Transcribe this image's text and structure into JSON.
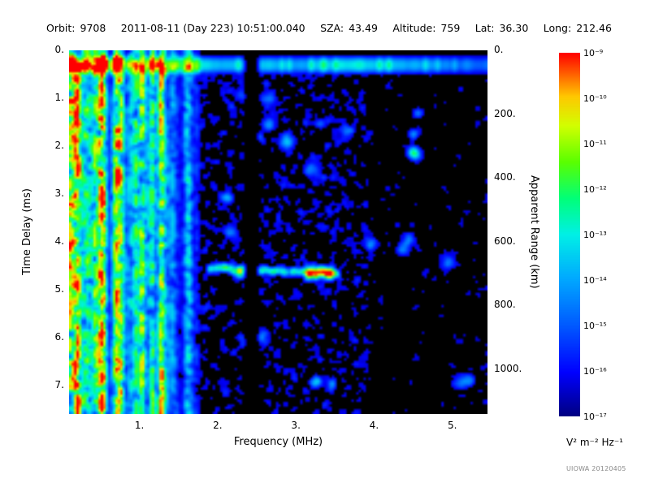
{
  "header": {
    "items": [
      {
        "label": "Orbit:",
        "value": "9708"
      },
      {
        "label": "",
        "value": "2011-08-11 (Day 223) 10:51:00.040"
      },
      {
        "label": "SZA:",
        "value": "43.49"
      },
      {
        "label": "Altitude:",
        "value": "759"
      },
      {
        "label": "Lat:",
        "value": "36.30"
      },
      {
        "label": "Long:",
        "value": "212.46"
      }
    ]
  },
  "chart_data": {
    "type": "heatmap",
    "description": "Active ionospheric sounding ionogram: echo spectral density versus sounding frequency and time delay",
    "xlabel": "Frequency (MHz)",
    "ylabel": "Time Delay (ms)",
    "y2label": "Apparent Range (km)",
    "xlim": [
      0.1,
      5.45
    ],
    "ylim": [
      0,
      7.6
    ],
    "y2_km_per_ms": 150,
    "xticks": [
      1,
      2,
      3,
      4,
      5
    ],
    "xtick_labels": [
      "1.",
      "2.",
      "3.",
      "4.",
      "5."
    ],
    "yticks": [
      0,
      1,
      2,
      3,
      4,
      5,
      6,
      7
    ],
    "ytick_labels": [
      "0.",
      "1.",
      "2.",
      "3.",
      "4.",
      "5.",
      "6.",
      "7."
    ],
    "y2ticks": [
      0,
      200,
      400,
      600,
      800,
      1000
    ],
    "y2tick_labels": [
      "0.",
      "200.",
      "400.",
      "600.",
      "800.",
      "1000."
    ],
    "colorbar": {
      "unit": "V² m⁻² Hz⁻¹",
      "max": "1e-9",
      "min": "1e-17",
      "tick_labels": [
        "10⁻⁹",
        "10⁻¹⁰",
        "10⁻¹¹",
        "10⁻¹²",
        "10⁻¹³",
        "10⁻¹⁴",
        "10⁻¹⁵",
        "10⁻¹⁶",
        "10⁻¹⁷"
      ],
      "colormap": [
        [
          0.0,
          "#000082"
        ],
        [
          0.12,
          "#0000ff"
        ],
        [
          0.25,
          "#005aff"
        ],
        [
          0.38,
          "#00aaff"
        ],
        [
          0.5,
          "#00f0e6"
        ],
        [
          0.6,
          "#00ff78"
        ],
        [
          0.7,
          "#5aff00"
        ],
        [
          0.8,
          "#d2ff00"
        ],
        [
          0.88,
          "#ffc800"
        ],
        [
          0.94,
          "#ff6400"
        ],
        [
          1.0,
          "#ff0000"
        ]
      ]
    },
    "features": [
      {
        "name": "local-plasma-noise-band",
        "freq_mhz": [
          0.1,
          5.45
        ],
        "delay_ms": [
          0.12,
          0.44
        ],
        "level": "strong"
      },
      {
        "name": "low-frequency-striations",
        "freq_mhz": [
          0.1,
          1.78
        ],
        "delay_ms": [
          0.0,
          7.6
        ],
        "level": "strong"
      },
      {
        "name": "diffuse-scatter",
        "freq_mhz": [
          1.78,
          3.92
        ],
        "delay_ms": [
          0.5,
          7.6
        ],
        "level": "weak"
      },
      {
        "name": "sparse-scatter",
        "freq_mhz": [
          3.92,
          5.45
        ],
        "delay_ms": [
          0.5,
          7.6
        ],
        "level": "very-weak"
      },
      {
        "name": "ionospheric-echo-trace",
        "freq_mhz": [
          1.88,
          3.55
        ],
        "delay_ms": [
          4.45,
          4.75
        ],
        "level": "strong"
      },
      {
        "name": "echo-bright-peak",
        "freq_mhz": [
          3.12,
          3.48
        ],
        "delay_ms": [
          4.55,
          4.85
        ],
        "level": "intense"
      },
      {
        "name": "interference-gap",
        "freq_mhz": [
          2.34,
          2.5
        ],
        "delay_ms": [
          0.1,
          7.6
        ],
        "level": "null"
      }
    ],
    "render": {
      "seed": 20120405,
      "grid": {
        "cols": 172,
        "rows": 150
      },
      "threshold": 0.075,
      "background": "#000000",
      "striations": {
        "freq": [
          0.1,
          1.78
        ],
        "strong_freq_max": 0.24,
        "sparse_freq_min": 1.45,
        "strong_col_prob": 0.28,
        "col_amp": [
          0.18,
          0.7
        ],
        "strong_amp": [
          0.75,
          1.2
        ],
        "edge_amp": [
          0.9,
          1.2
        ],
        "gap_prob": 0.1
      },
      "top_band": {
        "delay": [
          0.12,
          0.44
        ],
        "base": [
          0.3,
          0.62
        ],
        "bright_prob": 0.07,
        "bright_boost": 0.28,
        "right_fade_freq": 4.4,
        "right_fade": 0.8
      },
      "mid_speckle": {
        "freq": [
          1.78,
          3.92
        ],
        "delay_min": 0.5,
        "density": 0.4,
        "amp": [
          0.05,
          0.32
        ]
      },
      "right_speckle": {
        "freq": [
          3.92,
          5.45
        ],
        "delay_min": 0.5,
        "density": 0.26,
        "amp": [
          0.05,
          0.24
        ]
      },
      "accents": {
        "count": 26,
        "freq": [
          2.0,
          5.2
        ],
        "delay": [
          0.8,
          7.2
        ],
        "amp": [
          0.28,
          0.46
        ],
        "sigma": 1.6
      },
      "echo_trace": {
        "freq": [
          1.88,
          3.55
        ],
        "delay_start": 4.52,
        "delay_slope": 0.12,
        "amp": [
          0.55,
          0.75
        ],
        "sigma": 0.9,
        "break_prob": 0.12,
        "bright": {
          "freq": [
            3.12,
            3.48
          ],
          "amp": [
            1.0,
            1.25
          ],
          "sigma": 1.5
        }
      },
      "gap": {
        "freq": [
          2.34,
          2.5
        ],
        "delay_min": 0.1
      }
    }
  },
  "footer": {
    "watermark": "UIOWA 20120405"
  }
}
